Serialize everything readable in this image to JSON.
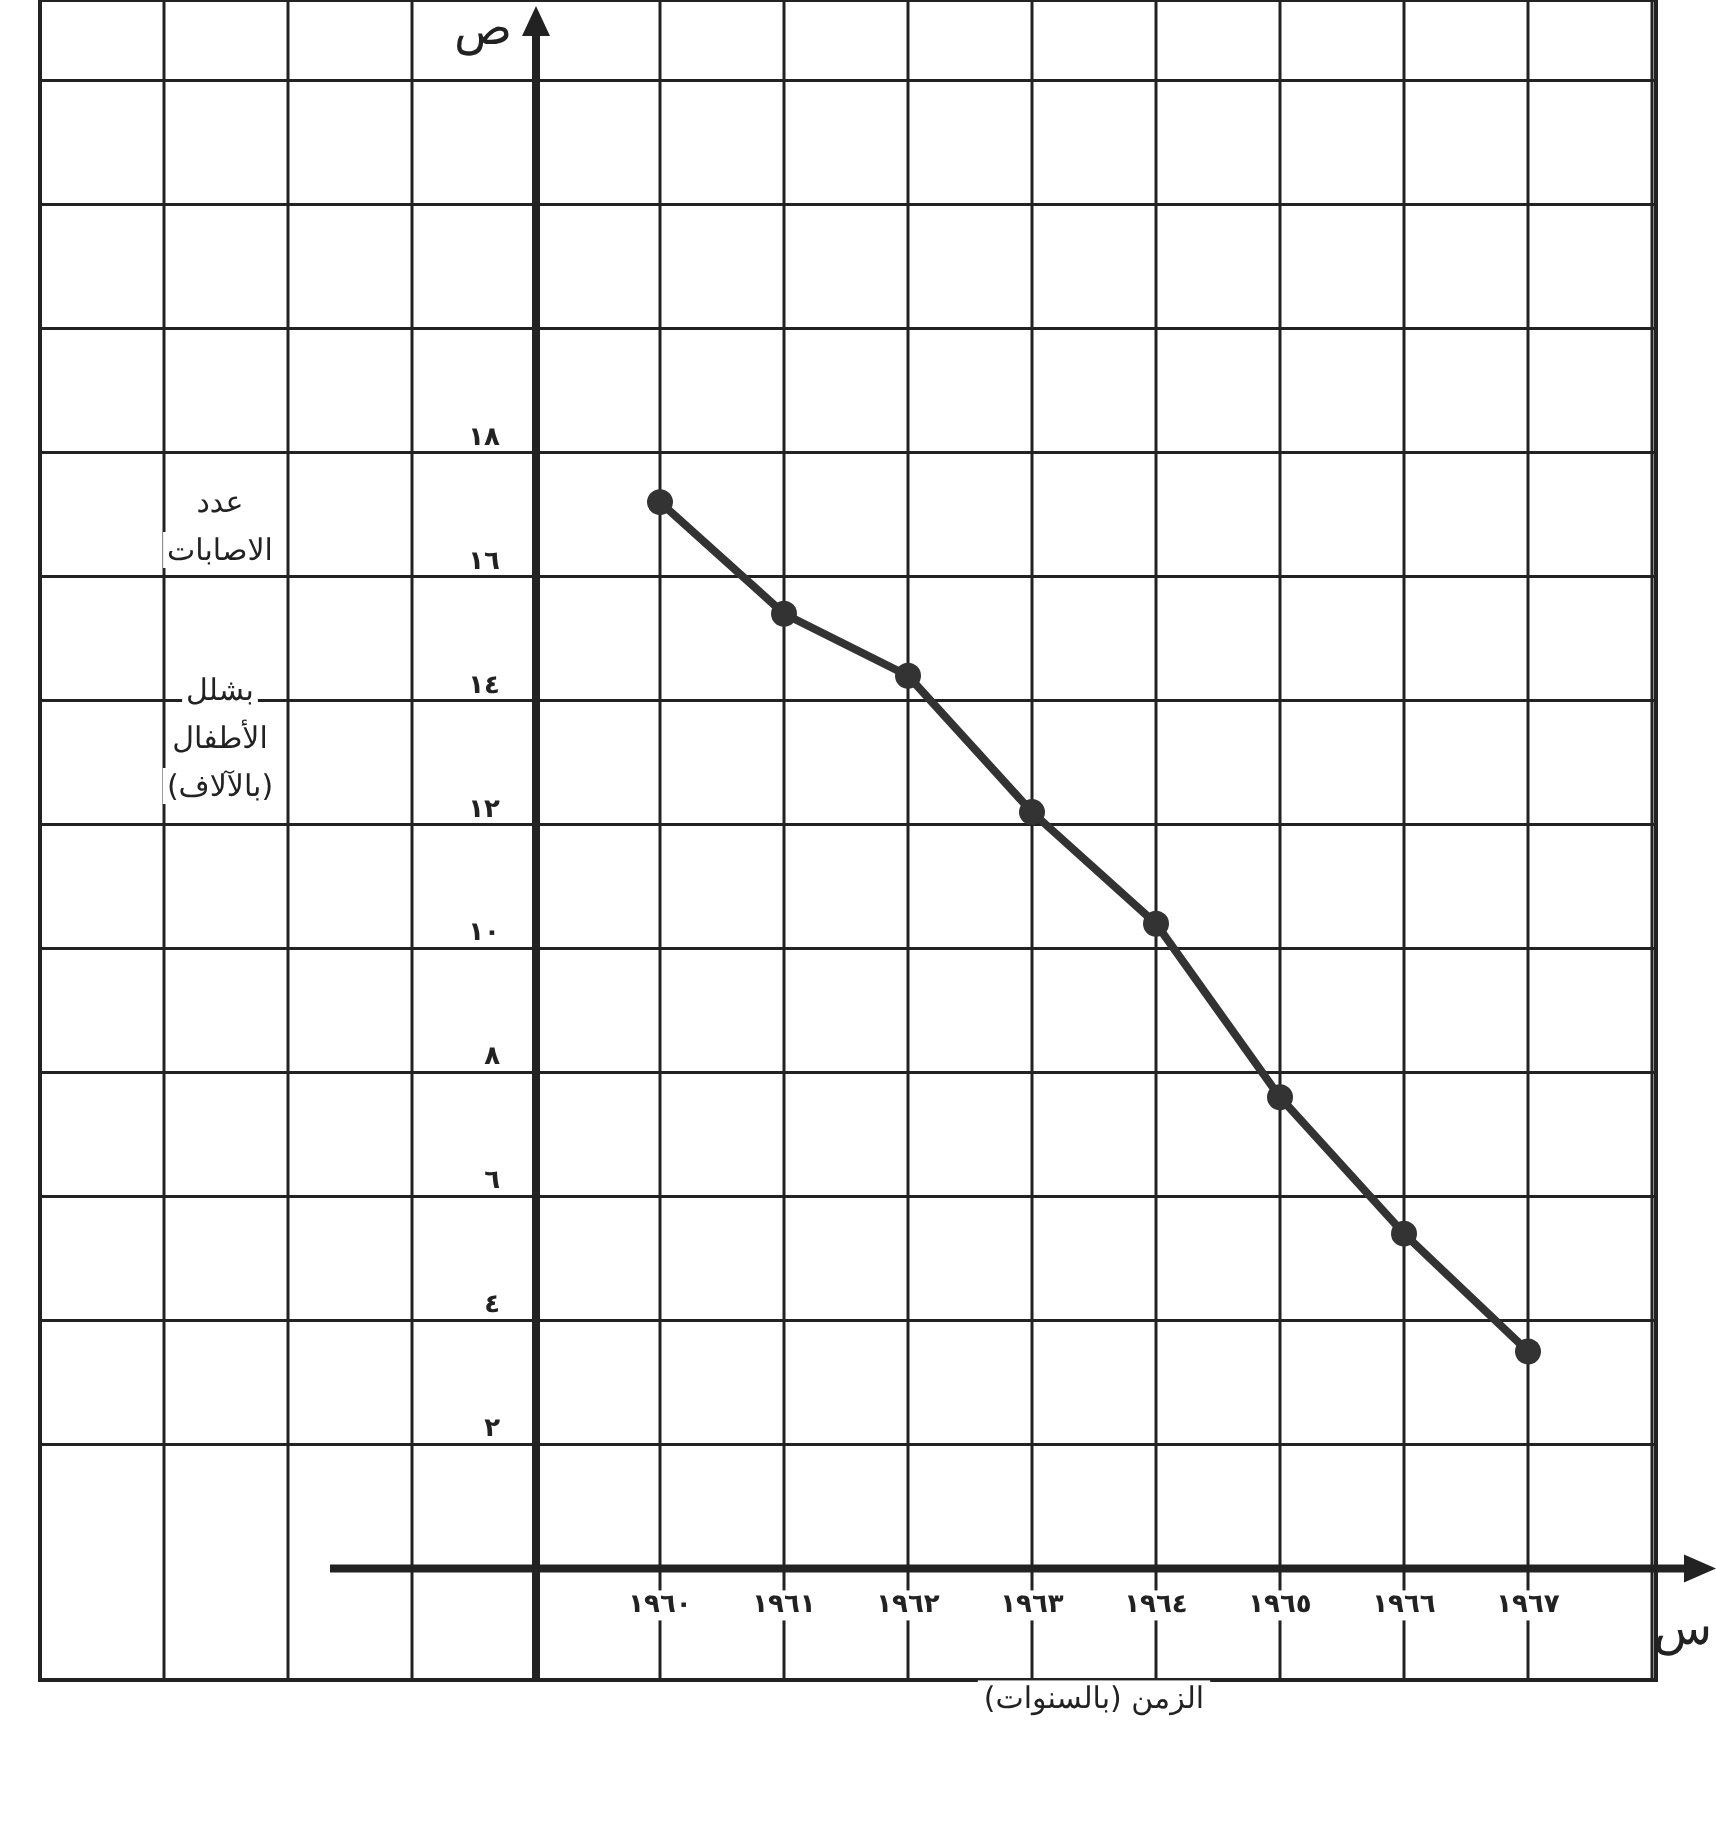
{
  "chart_data": {
    "type": "line",
    "categories": [
      "١٩٦٠",
      "١٩٦١",
      "١٩٦٢",
      "١٩٦٣",
      "١٩٦٤",
      "١٩٦٥",
      "١٩٦٦",
      "١٩٦٧"
    ],
    "series": [
      {
        "color": "#333333",
        "values": [
          17.2,
          15.4,
          14.4,
          12.2,
          10.4,
          7.6,
          5.4,
          3.5
        ]
      }
    ],
    "xlabel": "الزمن (بالسنوات)",
    "ylabel": "عدد الاصابات بشلل الأطفال (بالآلاف)",
    "annotations": [
      "ص",
      "س"
    ],
    "ylim": [
      -1.8,
      25.3
    ],
    "yticks": [
      {
        "value": 0,
        "label": null
      },
      {
        "value": 2,
        "label": "٢"
      },
      {
        "value": 4,
        "label": "٤"
      },
      {
        "value": 6,
        "label": "٦"
      },
      {
        "value": 8,
        "label": "٨"
      },
      {
        "value": 10,
        "label": "١٠"
      },
      {
        "value": 12,
        "label": "١٢"
      },
      {
        "value": 14,
        "label": "١٤"
      },
      {
        "value": 16,
        "label": "١٦"
      },
      {
        "value": 18,
        "label": "١٨"
      },
      {
        "value": 20,
        "label": null
      },
      {
        "value": 22,
        "label": null
      },
      {
        "value": 24,
        "label": null
      }
    ],
    "grid": true,
    "marker": "circle",
    "line_style": "solid"
  }
}
